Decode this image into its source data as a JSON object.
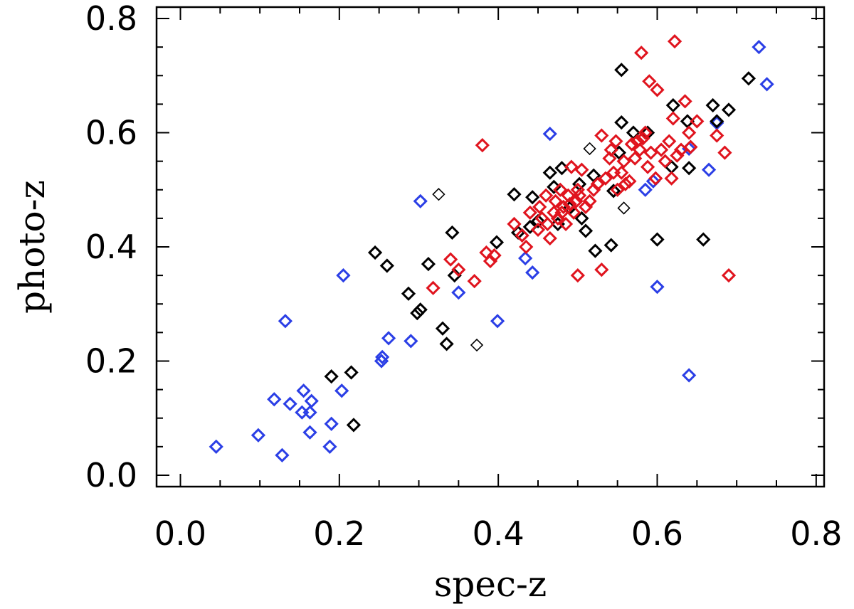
{
  "chart_data": {
    "type": "scatter",
    "title": "",
    "xlabel": "spec-z",
    "ylabel": "photo-z",
    "xlim": [
      -0.03,
      0.81
    ],
    "ylim": [
      -0.02,
      0.82
    ],
    "xticks": [
      "0.0",
      "0.2",
      "0.4",
      "0.6",
      "0.8"
    ],
    "yticks": [
      "0.0",
      "0.2",
      "0.4",
      "0.6",
      "0.8"
    ],
    "xtick_values": [
      0.0,
      0.2,
      0.4,
      0.6,
      0.8
    ],
    "ytick_values": [
      0.0,
      0.2,
      0.4,
      0.6,
      0.8
    ],
    "marker": "diamond",
    "series": [
      {
        "name": "blue",
        "color": "#2b3fe6",
        "points": [
          [
            0.045,
            0.05
          ],
          [
            0.098,
            0.07
          ],
          [
            0.118,
            0.133
          ],
          [
            0.128,
            0.035
          ],
          [
            0.132,
            0.27
          ],
          [
            0.138,
            0.125
          ],
          [
            0.153,
            0.11
          ],
          [
            0.155,
            0.148
          ],
          [
            0.163,
            0.075
          ],
          [
            0.163,
            0.11
          ],
          [
            0.165,
            0.13
          ],
          [
            0.188,
            0.05
          ],
          [
            0.19,
            0.09
          ],
          [
            0.203,
            0.148
          ],
          [
            0.205,
            0.35
          ],
          [
            0.253,
            0.2
          ],
          [
            0.254,
            0.207
          ],
          [
            0.262,
            0.24
          ],
          [
            0.29,
            0.235
          ],
          [
            0.302,
            0.48
          ],
          [
            0.35,
            0.32
          ],
          [
            0.399,
            0.27
          ],
          [
            0.434,
            0.38
          ],
          [
            0.443,
            0.355
          ],
          [
            0.465,
            0.598
          ],
          [
            0.585,
            0.5
          ],
          [
            0.595,
            0.515
          ],
          [
            0.6,
            0.33
          ],
          [
            0.64,
            0.175
          ],
          [
            0.64,
            0.572
          ],
          [
            0.665,
            0.535
          ],
          [
            0.675,
            0.617
          ],
          [
            0.728,
            0.75
          ],
          [
            0.738,
            0.685
          ]
        ]
      },
      {
        "name": "black",
        "color": "#000000",
        "points": [
          [
            0.19,
            0.173
          ],
          [
            0.215,
            0.18
          ],
          [
            0.218,
            0.088
          ],
          [
            0.245,
            0.39
          ],
          [
            0.26,
            0.367
          ],
          [
            0.287,
            0.318
          ],
          [
            0.298,
            0.284
          ],
          [
            0.302,
            0.29
          ],
          [
            0.312,
            0.37
          ],
          [
            0.33,
            0.257
          ],
          [
            0.335,
            0.23
          ],
          [
            0.342,
            0.425
          ],
          [
            0.345,
            0.35
          ],
          [
            0.398,
            0.408
          ],
          [
            0.42,
            0.492
          ],
          [
            0.425,
            0.425
          ],
          [
            0.44,
            0.435
          ],
          [
            0.443,
            0.487
          ],
          [
            0.45,
            0.445
          ],
          [
            0.465,
            0.53
          ],
          [
            0.47,
            0.505
          ],
          [
            0.475,
            0.44
          ],
          [
            0.48,
            0.538
          ],
          [
            0.49,
            0.468
          ],
          [
            0.502,
            0.51
          ],
          [
            0.505,
            0.45
          ],
          [
            0.51,
            0.428
          ],
          [
            0.52,
            0.525
          ],
          [
            0.522,
            0.393
          ],
          [
            0.542,
            0.403
          ],
          [
            0.545,
            0.498
          ],
          [
            0.552,
            0.565
          ],
          [
            0.555,
            0.618
          ],
          [
            0.555,
            0.71
          ],
          [
            0.57,
            0.6
          ],
          [
            0.588,
            0.6
          ],
          [
            0.6,
            0.413
          ],
          [
            0.618,
            0.54
          ],
          [
            0.62,
            0.648
          ],
          [
            0.638,
            0.62
          ],
          [
            0.64,
            0.538
          ],
          [
            0.658,
            0.413
          ],
          [
            0.67,
            0.648
          ],
          [
            0.675,
            0.62
          ],
          [
            0.69,
            0.64
          ],
          [
            0.715,
            0.695
          ]
        ]
      },
      {
        "name": "black-thin",
        "color": "#000000",
        "thin": true,
        "points": [
          [
            0.325,
            0.492
          ],
          [
            0.373,
            0.228
          ],
          [
            0.515,
            0.572
          ],
          [
            0.558,
            0.468
          ]
        ]
      },
      {
        "name": "red",
        "color": "#e0141e",
        "points": [
          [
            0.318,
            0.328
          ],
          [
            0.34,
            0.378
          ],
          [
            0.35,
            0.36
          ],
          [
            0.38,
            0.578
          ],
          [
            0.37,
            0.34
          ],
          [
            0.385,
            0.39
          ],
          [
            0.39,
            0.375
          ],
          [
            0.395,
            0.385
          ],
          [
            0.42,
            0.44
          ],
          [
            0.43,
            0.42
          ],
          [
            0.435,
            0.4
          ],
          [
            0.44,
            0.46
          ],
          [
            0.45,
            0.43
          ],
          [
            0.452,
            0.47
          ],
          [
            0.455,
            0.45
          ],
          [
            0.46,
            0.49
          ],
          [
            0.462,
            0.44
          ],
          [
            0.465,
            0.415
          ],
          [
            0.47,
            0.46
          ],
          [
            0.472,
            0.48
          ],
          [
            0.475,
            0.45
          ],
          [
            0.478,
            0.5
          ],
          [
            0.48,
            0.46
          ],
          [
            0.482,
            0.47
          ],
          [
            0.485,
            0.44
          ],
          [
            0.488,
            0.49
          ],
          [
            0.49,
            0.475
          ],
          [
            0.492,
            0.54
          ],
          [
            0.495,
            0.46
          ],
          [
            0.498,
            0.48
          ],
          [
            0.5,
            0.35
          ],
          [
            0.5,
            0.5
          ],
          [
            0.502,
            0.49
          ],
          [
            0.505,
            0.535
          ],
          [
            0.51,
            0.47
          ],
          [
            0.515,
            0.48
          ],
          [
            0.52,
            0.5
          ],
          [
            0.525,
            0.51
          ],
          [
            0.53,
            0.36
          ],
          [
            0.53,
            0.595
          ],
          [
            0.535,
            0.52
          ],
          [
            0.54,
            0.555
          ],
          [
            0.542,
            0.57
          ],
          [
            0.545,
            0.53
          ],
          [
            0.548,
            0.585
          ],
          [
            0.55,
            0.5
          ],
          [
            0.555,
            0.53
          ],
          [
            0.558,
            0.55
          ],
          [
            0.56,
            0.51
          ],
          [
            0.565,
            0.515
          ],
          [
            0.568,
            0.58
          ],
          [
            0.572,
            0.555
          ],
          [
            0.575,
            0.585
          ],
          [
            0.578,
            0.57
          ],
          [
            0.58,
            0.74
          ],
          [
            0.582,
            0.59
          ],
          [
            0.585,
            0.6
          ],
          [
            0.588,
            0.54
          ],
          [
            0.59,
            0.69
          ],
          [
            0.592,
            0.565
          ],
          [
            0.598,
            0.52
          ],
          [
            0.6,
            0.675
          ],
          [
            0.605,
            0.57
          ],
          [
            0.61,
            0.55
          ],
          [
            0.615,
            0.585
          ],
          [
            0.618,
            0.52
          ],
          [
            0.62,
            0.625
          ],
          [
            0.622,
            0.76
          ],
          [
            0.625,
            0.56
          ],
          [
            0.63,
            0.57
          ],
          [
            0.635,
            0.655
          ],
          [
            0.64,
            0.6
          ],
          [
            0.642,
            0.575
          ],
          [
            0.65,
            0.62
          ],
          [
            0.675,
            0.595
          ],
          [
            0.685,
            0.565
          ],
          [
            0.69,
            0.35
          ]
        ]
      }
    ]
  }
}
